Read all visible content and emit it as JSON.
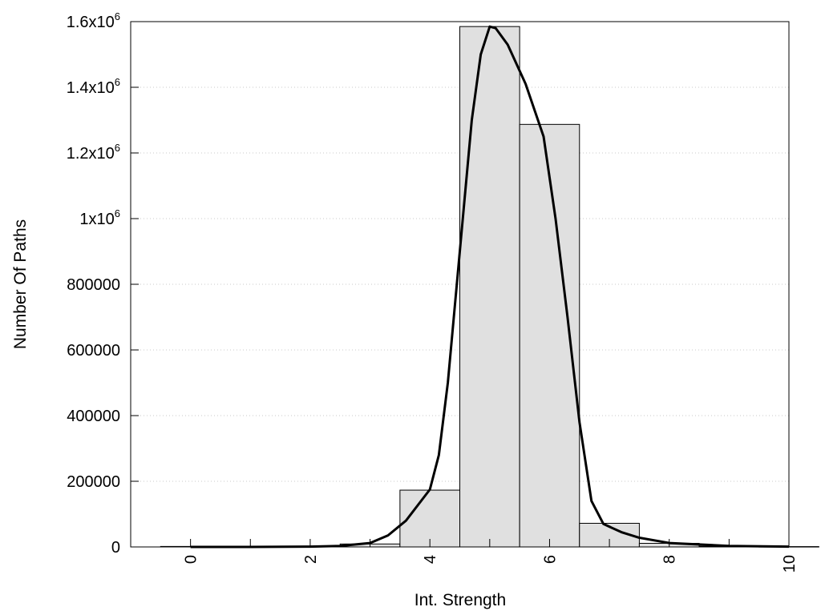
{
  "chart_data": {
    "type": "bar",
    "xlabel": "Int. Strength",
    "ylabel": "Number Of Paths",
    "xlim": [
      -1,
      10
    ],
    "ylim": [
      0,
      1600000
    ],
    "grid": "horizontal dotted",
    "x_ticks": [
      {
        "value": 0,
        "label": "0"
      },
      {
        "value": 2,
        "label": "2"
      },
      {
        "value": 4,
        "label": "4"
      },
      {
        "value": 6,
        "label": "6"
      },
      {
        "value": 8,
        "label": "8"
      },
      {
        "value": 10,
        "label": "10"
      }
    ],
    "y_ticks": [
      {
        "value": 0,
        "label": "0"
      },
      {
        "value": 200000,
        "label": "200000"
      },
      {
        "value": 400000,
        "label": "400000"
      },
      {
        "value": 600000,
        "label": "600000"
      },
      {
        "value": 800000,
        "label": "800000"
      },
      {
        "value": 1000000,
        "base": "1x10",
        "exp": "6"
      },
      {
        "value": 1200000,
        "base": "1.2x10",
        "exp": "6"
      },
      {
        "value": 1400000,
        "base": "1.4x10",
        "exp": "6"
      },
      {
        "value": 1600000,
        "base": "1.6x10",
        "exp": "6"
      }
    ],
    "bar_width": 1,
    "bar_color": "#e0e0e0",
    "bars": [
      {
        "x": 0,
        "value": 1500
      },
      {
        "x": 1,
        "value": 1500
      },
      {
        "x": 2,
        "value": 2500
      },
      {
        "x": 3,
        "value": 9000
      },
      {
        "x": 4,
        "value": 173000
      },
      {
        "x": 5,
        "value": 1585000
      },
      {
        "x": 6,
        "value": 1287000
      },
      {
        "x": 7,
        "value": 72000
      },
      {
        "x": 8,
        "value": 11000
      },
      {
        "x": 9,
        "value": 2000
      },
      {
        "x": 10,
        "value": 1000
      }
    ],
    "fit_curve": {
      "color": "#000000",
      "points": [
        [
          0,
          0
        ],
        [
          1,
          0
        ],
        [
          2,
          1000
        ],
        [
          2.5,
          3000
        ],
        [
          3,
          12000
        ],
        [
          3.3,
          35000
        ],
        [
          3.6,
          80000
        ],
        [
          4,
          175000
        ],
        [
          4.15,
          280000
        ],
        [
          4.3,
          500000
        ],
        [
          4.5,
          900000
        ],
        [
          4.7,
          1300000
        ],
        [
          4.85,
          1500000
        ],
        [
          5,
          1585000
        ],
        [
          5.1,
          1580000
        ],
        [
          5.3,
          1530000
        ],
        [
          5.6,
          1410000
        ],
        [
          5.9,
          1250000
        ],
        [
          6.1,
          1000000
        ],
        [
          6.3,
          700000
        ],
        [
          6.5,
          380000
        ],
        [
          6.7,
          140000
        ],
        [
          6.9,
          70000
        ],
        [
          7.2,
          45000
        ],
        [
          7.5,
          28000
        ],
        [
          8,
          12000
        ],
        [
          9,
          3000
        ],
        [
          10,
          1000
        ]
      ]
    }
  }
}
